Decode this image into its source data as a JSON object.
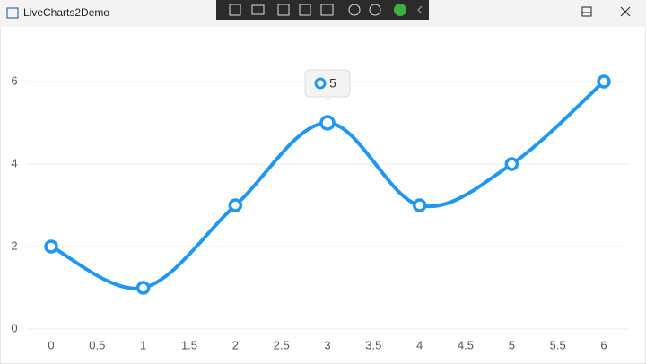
{
  "window": {
    "title": "LiveCharts2Demo"
  },
  "chart_data": {
    "type": "line",
    "x": [
      0,
      1,
      2,
      3,
      4,
      5,
      6
    ],
    "values": [
      2,
      1,
      3,
      5,
      3,
      4,
      6
    ],
    "color": "#2196f3",
    "xlim": [
      0,
      6
    ],
    "xticks": [
      0,
      0.5,
      1,
      1.5,
      2,
      2.5,
      3,
      3.5,
      4,
      4.5,
      5,
      5.5,
      6
    ],
    "ylim": [
      0,
      7
    ],
    "yticks": [
      0,
      2,
      4,
      6
    ],
    "grid": true,
    "smooth": true,
    "tooltip_index": 3
  }
}
